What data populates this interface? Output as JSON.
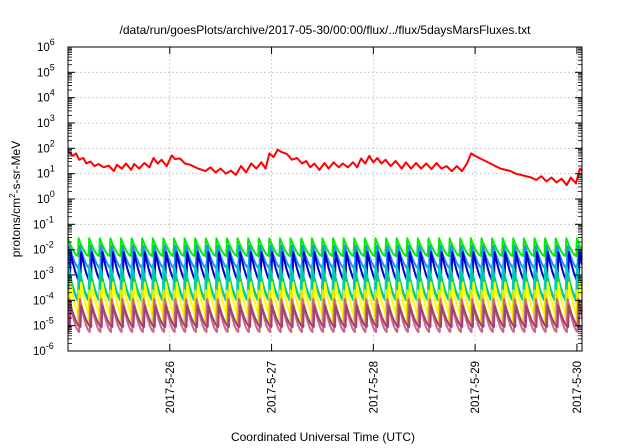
{
  "chart_data": {
    "type": "line",
    "title": "/data/run/goesPlots/archive/2017-05-30/00:00/flux/../flux/5daysMarsFluxes.txt",
    "xlabel": "Coordinated Universal Time (UTC)",
    "ylabel_parts": [
      "protons/cm",
      "2",
      "-s-sr-MeV"
    ],
    "y_scale": "log",
    "y_ticks": [
      {
        "base": "10",
        "exp": "-6"
      },
      {
        "base": "10",
        "exp": "-5"
      },
      {
        "base": "10",
        "exp": "-4"
      },
      {
        "base": "10",
        "exp": "-3"
      },
      {
        "base": "10",
        "exp": "-2"
      },
      {
        "base": "10",
        "exp": "-1"
      },
      {
        "base": "10",
        "exp": "0"
      },
      {
        "base": "10",
        "exp": "1"
      },
      {
        "base": "10",
        "exp": "2"
      },
      {
        "base": "10",
        "exp": "3"
      },
      {
        "base": "10",
        "exp": "4"
      },
      {
        "base": "10",
        "exp": "5"
      },
      {
        "base": "10",
        "exp": "6"
      }
    ],
    "ylim_log10": [
      -6,
      6
    ],
    "x_range_days": [
      25.0,
      30.05
    ],
    "x_ticks": [
      {
        "label": "2017-5-26",
        "day": 26
      },
      {
        "label": "2017-5-27",
        "day": 27
      },
      {
        "label": "2017-5-28",
        "day": 28
      },
      {
        "label": "2017-5-29",
        "day": 29
      },
      {
        "label": "2017-5-30",
        "day": 30
      }
    ],
    "grid": true,
    "red_series": {
      "color": "#ff0000",
      "points_day_log10": [
        [
          25.0,
          1.9
        ],
        [
          25.05,
          1.7
        ],
        [
          25.08,
          1.8
        ],
        [
          25.11,
          1.55
        ],
        [
          25.15,
          1.62
        ],
        [
          25.18,
          1.4
        ],
        [
          25.22,
          1.48
        ],
        [
          25.26,
          1.3
        ],
        [
          25.3,
          1.38
        ],
        [
          25.35,
          1.25
        ],
        [
          25.4,
          1.32
        ],
        [
          25.45,
          1.1
        ],
        [
          25.48,
          1.35
        ],
        [
          25.53,
          1.2
        ],
        [
          25.57,
          1.4
        ],
        [
          25.62,
          1.15
        ],
        [
          25.65,
          1.38
        ],
        [
          25.7,
          1.2
        ],
        [
          25.75,
          1.42
        ],
        [
          25.8,
          1.25
        ],
        [
          25.84,
          1.62
        ],
        [
          25.88,
          1.4
        ],
        [
          25.92,
          1.55
        ],
        [
          25.97,
          1.3
        ],
        [
          26.02,
          1.72
        ],
        [
          26.05,
          1.58
        ],
        [
          26.1,
          1.6
        ],
        [
          26.15,
          1.4
        ],
        [
          26.2,
          1.35
        ],
        [
          26.28,
          1.2
        ],
        [
          26.35,
          1.1
        ],
        [
          26.4,
          1.25
        ],
        [
          26.45,
          1.05
        ],
        [
          26.5,
          1.2
        ],
        [
          26.55,
          1.0
        ],
        [
          26.6,
          1.12
        ],
        [
          26.65,
          0.95
        ],
        [
          26.7,
          1.3
        ],
        [
          26.75,
          1.05
        ],
        [
          26.8,
          1.4
        ],
        [
          26.85,
          1.2
        ],
        [
          26.9,
          1.45
        ],
        [
          26.94,
          1.2
        ],
        [
          26.98,
          1.8
        ],
        [
          27.02,
          1.65
        ],
        [
          27.06,
          1.95
        ],
        [
          27.1,
          1.85
        ],
        [
          27.15,
          1.78
        ],
        [
          27.2,
          1.55
        ],
        [
          27.25,
          1.62
        ],
        [
          27.3,
          1.4
        ],
        [
          27.34,
          1.5
        ],
        [
          27.38,
          1.25
        ],
        [
          27.42,
          1.4
        ],
        [
          27.47,
          1.15
        ],
        [
          27.52,
          1.42
        ],
        [
          27.56,
          1.2
        ],
        [
          27.61,
          1.45
        ],
        [
          27.66,
          1.25
        ],
        [
          27.7,
          1.4
        ],
        [
          27.75,
          1.25
        ],
        [
          27.8,
          1.45
        ],
        [
          27.84,
          1.25
        ],
        [
          27.88,
          1.6
        ],
        [
          27.92,
          1.4
        ],
        [
          27.96,
          1.7
        ],
        [
          28.0,
          1.45
        ],
        [
          28.04,
          1.62
        ],
        [
          28.08,
          1.4
        ],
        [
          28.12,
          1.55
        ],
        [
          28.17,
          1.3
        ],
        [
          28.22,
          1.5
        ],
        [
          28.28,
          1.2
        ],
        [
          28.32,
          1.45
        ],
        [
          28.37,
          1.2
        ],
        [
          28.42,
          1.42
        ],
        [
          28.47,
          1.2
        ],
        [
          28.52,
          1.4
        ],
        [
          28.57,
          1.18
        ],
        [
          28.62,
          1.42
        ],
        [
          28.67,
          1.2
        ],
        [
          28.72,
          1.3
        ],
        [
          28.77,
          1.1
        ],
        [
          28.82,
          1.3
        ],
        [
          28.87,
          1.1
        ],
        [
          28.92,
          1.4
        ],
        [
          28.96,
          1.8
        ],
        [
          29.0,
          1.7
        ],
        [
          29.05,
          1.6
        ],
        [
          29.1,
          1.5
        ],
        [
          29.15,
          1.4
        ],
        [
          29.2,
          1.3
        ],
        [
          29.25,
          1.2
        ],
        [
          29.3,
          1.15
        ],
        [
          29.35,
          1.1
        ],
        [
          29.4,
          1.0
        ],
        [
          29.45,
          0.95
        ],
        [
          29.5,
          0.9
        ],
        [
          29.55,
          0.85
        ],
        [
          29.6,
          0.75
        ],
        [
          29.65,
          0.9
        ],
        [
          29.7,
          0.7
        ],
        [
          29.75,
          0.85
        ],
        [
          29.8,
          0.65
        ],
        [
          29.85,
          0.8
        ],
        [
          29.9,
          0.55
        ],
        [
          29.94,
          0.85
        ],
        [
          29.99,
          0.62
        ],
        [
          30.03,
          1.2
        ],
        [
          30.05,
          1.1
        ]
      ]
    },
    "sawtooth_series": [
      {
        "color": "#00ee00",
        "peak_log10": -1.55,
        "trough_log10": -2.25
      },
      {
        "color": "#1e90ff",
        "peak_log10": -1.85,
        "trough_log10": -2.75
      },
      {
        "color": "#0000cd",
        "peak_log10": -2.1,
        "trough_log10": -3.3
      },
      {
        "color": "#00cccc",
        "peak_log10": -2.6,
        "trough_log10": -3.9
      },
      {
        "color": "#00cc88",
        "peak_log10": -2.95,
        "trough_log10": -4.05
      },
      {
        "color": "#ffff00",
        "peak_log10": -3.3,
        "trough_log10": -4.7
      },
      {
        "color": "#e8e800",
        "peak_log10": -3.6,
        "trough_log10": -4.9
      },
      {
        "color": "#cc6688",
        "peak_log10": -3.95,
        "trough_log10": -5.25
      },
      {
        "color": "#a0407a",
        "peak_log10": -4.2,
        "trough_log10": -5.05
      }
    ],
    "sawtooth_cycles_per_day": 9.6
  }
}
